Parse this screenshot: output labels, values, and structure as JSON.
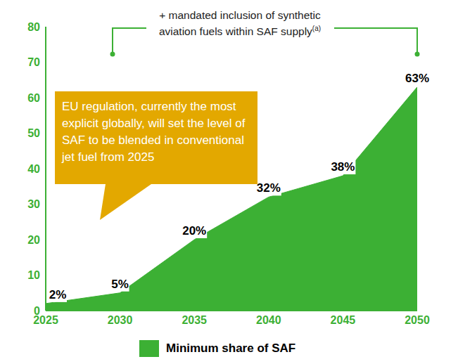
{
  "chart_data": {
    "type": "area",
    "x": [
      2025,
      2030,
      2035,
      2040,
      2045,
      2050
    ],
    "series": [
      {
        "name": "Minimum share of SAF",
        "color": "#3cb034",
        "values": [
          2,
          5,
          20,
          32,
          38,
          63
        ],
        "value_labels": [
          "2%",
          "5%",
          "20%",
          "32%",
          "38%",
          "63%"
        ]
      }
    ],
    "xlim": [
      2025,
      2050
    ],
    "xticks": [
      2025,
      2030,
      2035,
      2040,
      2045,
      2050
    ],
    "ylim": [
      0,
      80
    ],
    "yticks": [
      0,
      10,
      20,
      30,
      40,
      50,
      60,
      70,
      80
    ],
    "grid": false,
    "data_labels": true,
    "legend": "bottom",
    "annotations": [
      {
        "text": "+ mandated inclusion of synthetic aviation fuels within SAF supply",
        "superscript": "(a)"
      },
      {
        "text": "EU regulation, currently the most explicit globally, will set the level of SAF to be blended in conventional jet fuel from 2025"
      }
    ]
  }
}
